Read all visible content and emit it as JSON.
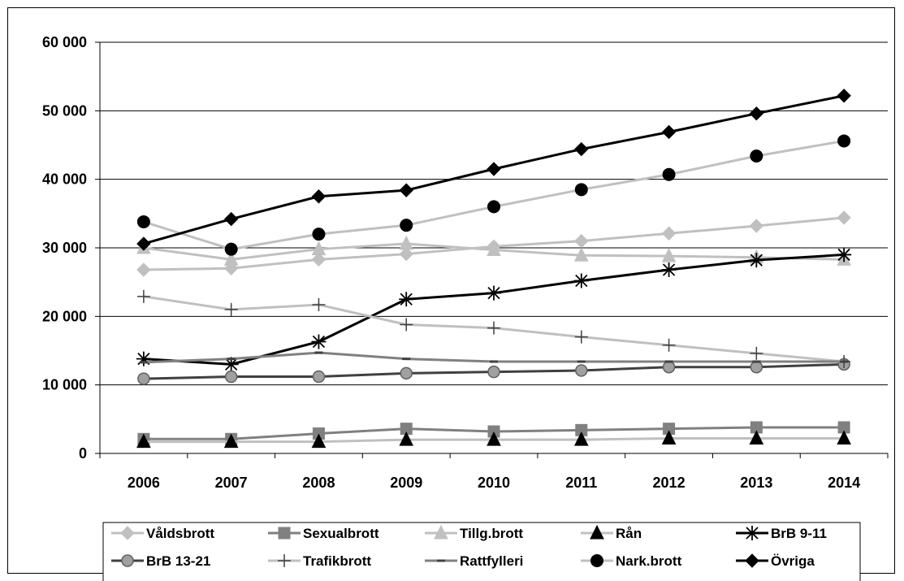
{
  "chart_data": {
    "type": "line",
    "title": "",
    "xlabel": "",
    "ylabel": "",
    "ylim": [
      0,
      60000
    ],
    "ytick_values": [
      0,
      10000,
      20000,
      30000,
      40000,
      50000,
      60000
    ],
    "ytick_labels": [
      "0",
      "10 000",
      "20 000",
      "30 000",
      "40 000",
      "50 000",
      "60 000"
    ],
    "categories": [
      "2006",
      "2007",
      "2008",
      "2009",
      "2010",
      "2011",
      "2012",
      "2013",
      "2014"
    ],
    "grid": "horizontal",
    "legend_position": "bottom",
    "series": [
      {
        "name": "Våldsbrott",
        "color": "#c0c0c0",
        "marker": "diamond",
        "values": [
          26800,
          27000,
          28300,
          29100,
          30200,
          31000,
          32100,
          33200,
          34400
        ]
      },
      {
        "name": "Sexualbrott",
        "color": "#808080",
        "marker": "square",
        "values": [
          2100,
          2100,
          2900,
          3600,
          3200,
          3400,
          3600,
          3800,
          3800
        ]
      },
      {
        "name": "Tillg.brott",
        "color": "#c0c0c0",
        "marker": "triangle",
        "values": [
          30000,
          28300,
          29800,
          30600,
          29700,
          28900,
          28800,
          28600,
          28300
        ]
      },
      {
        "name": "Rån",
        "color": "#c0c0c0",
        "marker": "triangle-black",
        "values": [
          1700,
          1700,
          1700,
          2000,
          2000,
          2000,
          2200,
          2200,
          2200
        ]
      },
      {
        "name": "BrB 9-11",
        "color": "#000000",
        "marker": "star",
        "values": [
          13800,
          13000,
          16300,
          22500,
          23400,
          25200,
          26800,
          28200,
          29000
        ]
      },
      {
        "name": "BrB 13-21",
        "color": "#404040",
        "marker": "circle-gray",
        "values": [
          10900,
          11200,
          11200,
          11700,
          11900,
          12100,
          12600,
          12600,
          13000
        ]
      },
      {
        "name": "Trafikbrott",
        "color": "#c0c0c0",
        "marker": "plus",
        "values": [
          22900,
          21000,
          21700,
          18800,
          18300,
          17000,
          15800,
          14600,
          13400
        ]
      },
      {
        "name": "Rattfylleri",
        "color": "#808080",
        "marker": "dash",
        "values": [
          13300,
          13800,
          14700,
          13800,
          13400,
          13400,
          13400,
          13400,
          13400
        ]
      },
      {
        "name": "Nark.brott",
        "color": "#c0c0c0",
        "marker": "circle-black",
        "values": [
          33800,
          29800,
          32000,
          33300,
          36000,
          38500,
          40700,
          43400,
          45600
        ]
      },
      {
        "name": "Övriga",
        "color": "#000000",
        "marker": "diamond-black",
        "values": [
          30600,
          34200,
          37500,
          38400,
          41500,
          44400,
          46900,
          49600,
          52200
        ]
      }
    ]
  }
}
